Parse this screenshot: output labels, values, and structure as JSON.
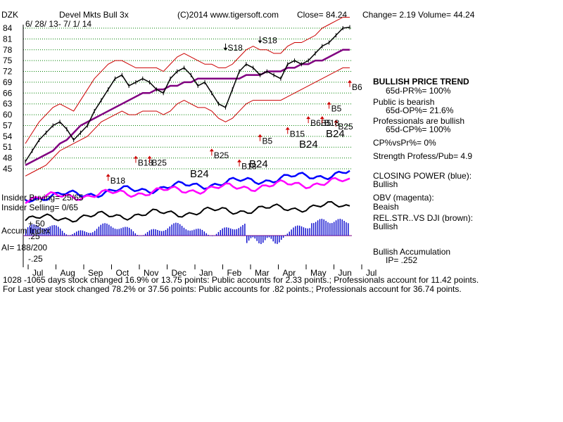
{
  "header": {
    "ticker": "DZK",
    "name": "Devel Mkts Bull 3x",
    "copyright": "(C)2014 www.tigersoft.com",
    "close": "Close= 84.24",
    "change": "Change= 2.19",
    "volume": "Volume= 44.24",
    "daterange": "6/ 28/ 13- 7/ 1/ 14"
  },
  "chart_data": {
    "type": "line",
    "price_axis": {
      "ticks": [
        84,
        81,
        78,
        75,
        72,
        69,
        66,
        63,
        60,
        57,
        54,
        51,
        48,
        45
      ],
      "range": [
        45,
        84
      ]
    },
    "accum_axis": {
      "ticks": [
        "+.50",
        ".25",
        "-.25"
      ]
    },
    "months": [
      "Jul",
      "Aug",
      "Sep",
      "Oct",
      "Nov",
      "Dec",
      "Jan",
      "Feb",
      "Mar",
      "Apr",
      "May",
      "Jun",
      "Jul"
    ],
    "price": [
      47,
      50,
      53,
      55,
      57,
      58,
      56,
      53,
      55,
      57,
      61,
      64,
      67,
      70,
      71,
      68,
      69,
      70,
      69,
      67,
      66,
      70,
      72,
      73,
      71,
      68,
      69,
      66,
      63,
      62,
      67,
      72,
      74,
      73,
      71,
      72,
      71,
      70,
      74,
      75,
      74,
      75,
      77,
      79,
      80,
      82,
      84,
      84.24
    ],
    "ma65": [
      46,
      47,
      48,
      49,
      50,
      52,
      53,
      55,
      57,
      58,
      59,
      60,
      61,
      62,
      63,
      64,
      65,
      66,
      66,
      67,
      67,
      68,
      68,
      69,
      69,
      70,
      70,
      70,
      70,
      70,
      70,
      70,
      71,
      71,
      71,
      72,
      72,
      72,
      73,
      73,
      74,
      74,
      75,
      75,
      76,
      77,
      78,
      78
    ],
    "upper_band": [
      52,
      55,
      58,
      60,
      62,
      63,
      62,
      61,
      64,
      67,
      70,
      72,
      74,
      75,
      75,
      74,
      73,
      73,
      73,
      73,
      72,
      74,
      76,
      77,
      76,
      75,
      74,
      74,
      73,
      73,
      74,
      76,
      78,
      79,
      78,
      78,
      77,
      77,
      79,
      80,
      80,
      81,
      82,
      84,
      85,
      86,
      87,
      87
    ],
    "lower_band": [
      43,
      44,
      45,
      46,
      48,
      50,
      51,
      52,
      53,
      54,
      56,
      58,
      59,
      60,
      61,
      60,
      60,
      61,
      61,
      61,
      60,
      61,
      63,
      64,
      63,
      62,
      62,
      61,
      59,
      58,
      59,
      61,
      63,
      64,
      64,
      64,
      64,
      64,
      65,
      66,
      67,
      68,
      69,
      70,
      71,
      72,
      73,
      73
    ],
    "signals": [
      {
        "label": "S18",
        "x": 29,
        "y": 77,
        "color": "#000000"
      },
      {
        "label": "S18",
        "x": 34,
        "y": 79,
        "color": "#000000"
      },
      {
        "label": "B6",
        "x": 47,
        "y": 70,
        "color": "#000000"
      },
      {
        "label": "B5",
        "x": 34,
        "y": 55,
        "color": "#000000"
      },
      {
        "label": "B15",
        "x": 38,
        "y": 57,
        "color": "#000000"
      },
      {
        "label": "B25",
        "x": 27,
        "y": 51,
        "color": "#000000"
      },
      {
        "label": "B18",
        "x": 16,
        "y": 49,
        "color": "#000000"
      },
      {
        "label": "B25",
        "x": 18,
        "y": 49,
        "color": "#000000"
      },
      {
        "label": "B5",
        "x": 44,
        "y": 64,
        "color": "#000000"
      },
      {
        "label": "B25",
        "x": 45,
        "y": 59,
        "color": "#000000"
      },
      {
        "label": "B6B5",
        "x": 41,
        "y": 60,
        "color": "#000000"
      },
      {
        "label": "B18",
        "x": 43,
        "y": 60,
        "color": "#000000"
      },
      {
        "label": "B18",
        "x": 12,
        "y": 44,
        "color": "#000000"
      },
      {
        "label": "B18",
        "x": 31,
        "y": 48,
        "color": "#000000"
      }
    ],
    "indicator_labels": [
      "B24",
      "B24",
      "B24",
      "B24"
    ]
  },
  "stats": {
    "trend_title": "BULLISH PRICE TREND",
    "pr": "65d-PR%= 100%",
    "public_title": "Public is bearish",
    "op": "65d-OP%= 21.6%",
    "pros_title": "Professionals are bullish",
    "cp": "65d-CP%= 100%",
    "cpvspr": "CP%vsPr%= 0%",
    "strength": "Strength Profess/Pub= 4.9",
    "closing_power": "CLOSING POWER (blue):",
    "cp_state": "Bullish",
    "obv": "OBV (magenta):",
    "obv_state": "Beaish",
    "relstr": "REL.STR..VS DJI (brown):",
    "relstr_state": "Bullish",
    "accum": "Bullish Accumulation",
    "ip": "IP= .252"
  },
  "left_labels": {
    "insider_buying": "Insider Buying= 25/65",
    "insider_selling": "Insider Selling= 0/65",
    "accum_index": "Accum Index",
    "ai": "AI= 188/200"
  },
  "footer": {
    "line1": "1028 -1065 days stock changed 16.9% or 13.75 points: Public accounts for 2.33 points.; Professionals account for 11.42 points.",
    "line2": "For Last year stock changed 78.2% or 37.56 points: Public accounts for .82 points.; Professionals account for 36.74 points."
  },
  "colors": {
    "price": "#000000",
    "ma": "#800080",
    "bands": "#cc0000",
    "closing_power": "#0000ff",
    "obv": "#ff00ff",
    "accum": "#0000cc"
  }
}
